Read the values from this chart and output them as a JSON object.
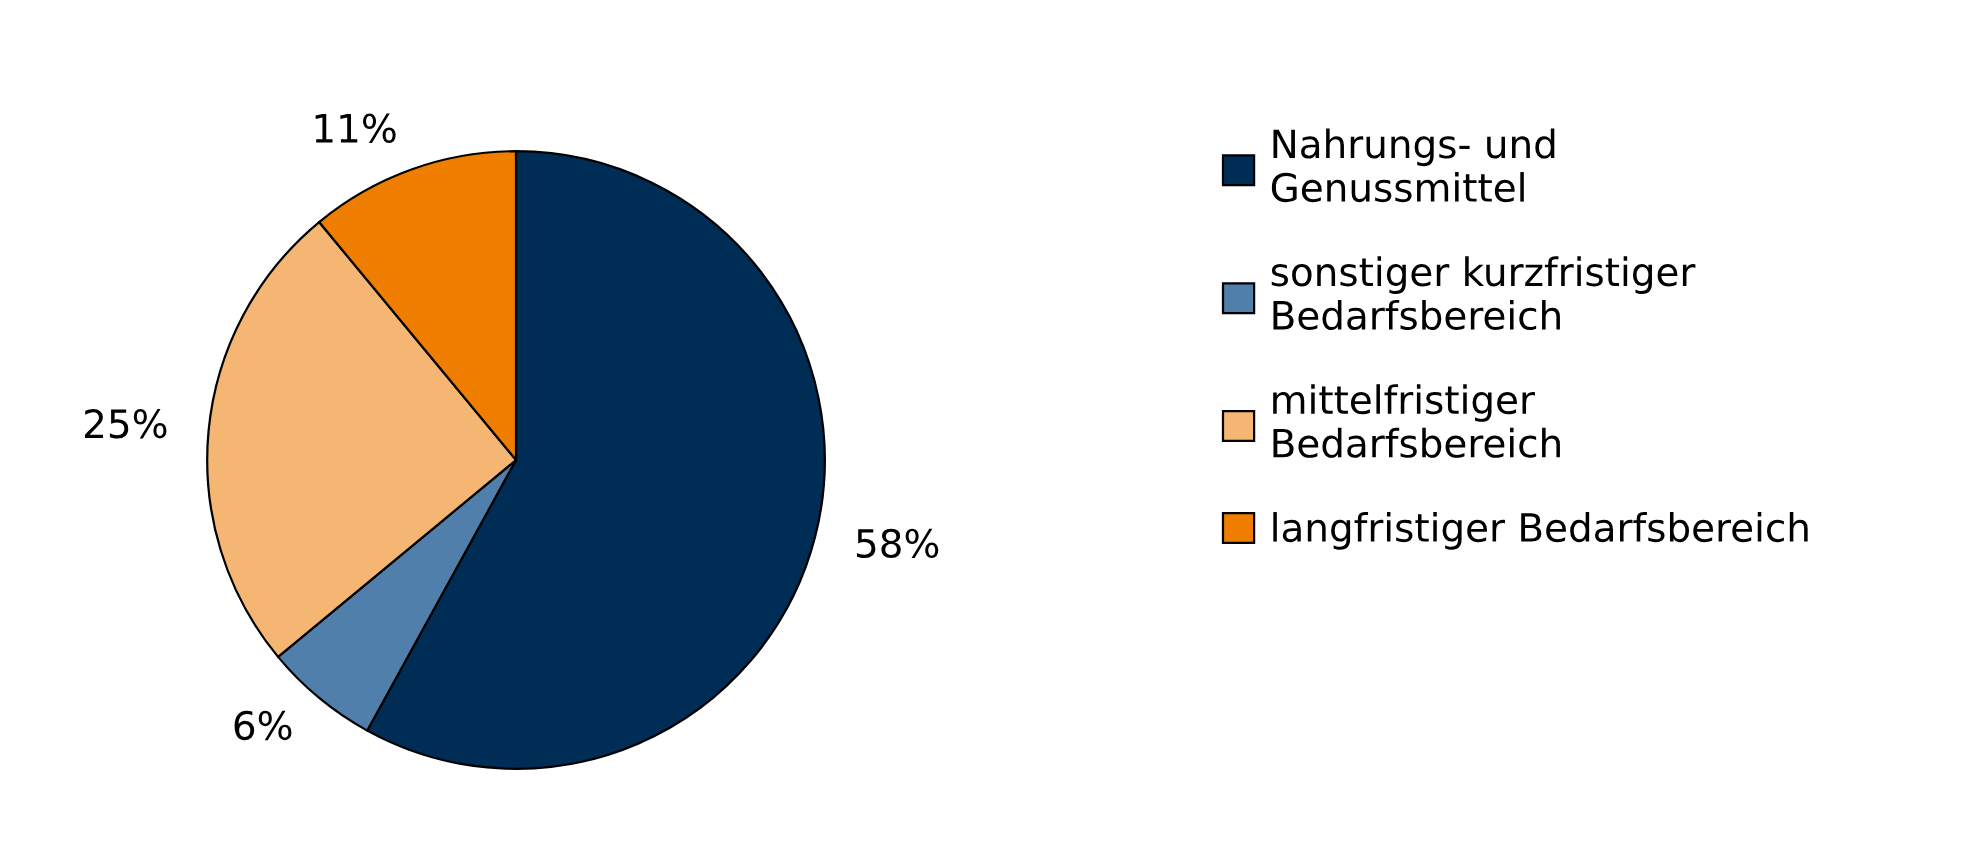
{
  "chart_data": {
    "type": "pie",
    "categories": [
      "Nahrungs- und\nGenussmittel",
      "sonstiger kurzfristiger\nBedarfsbereich",
      "mittelfristiger\nBedarfsbereich",
      "langfristiger Bedarfsbereich"
    ],
    "values": [
      58,
      6,
      25,
      11
    ],
    "value_labels": [
      "58%",
      "6%",
      "25%",
      "11%"
    ],
    "colors": [
      "#002d55",
      "#4f7faa",
      "#f5b673",
      "#ee7d00"
    ],
    "legend": "right"
  }
}
